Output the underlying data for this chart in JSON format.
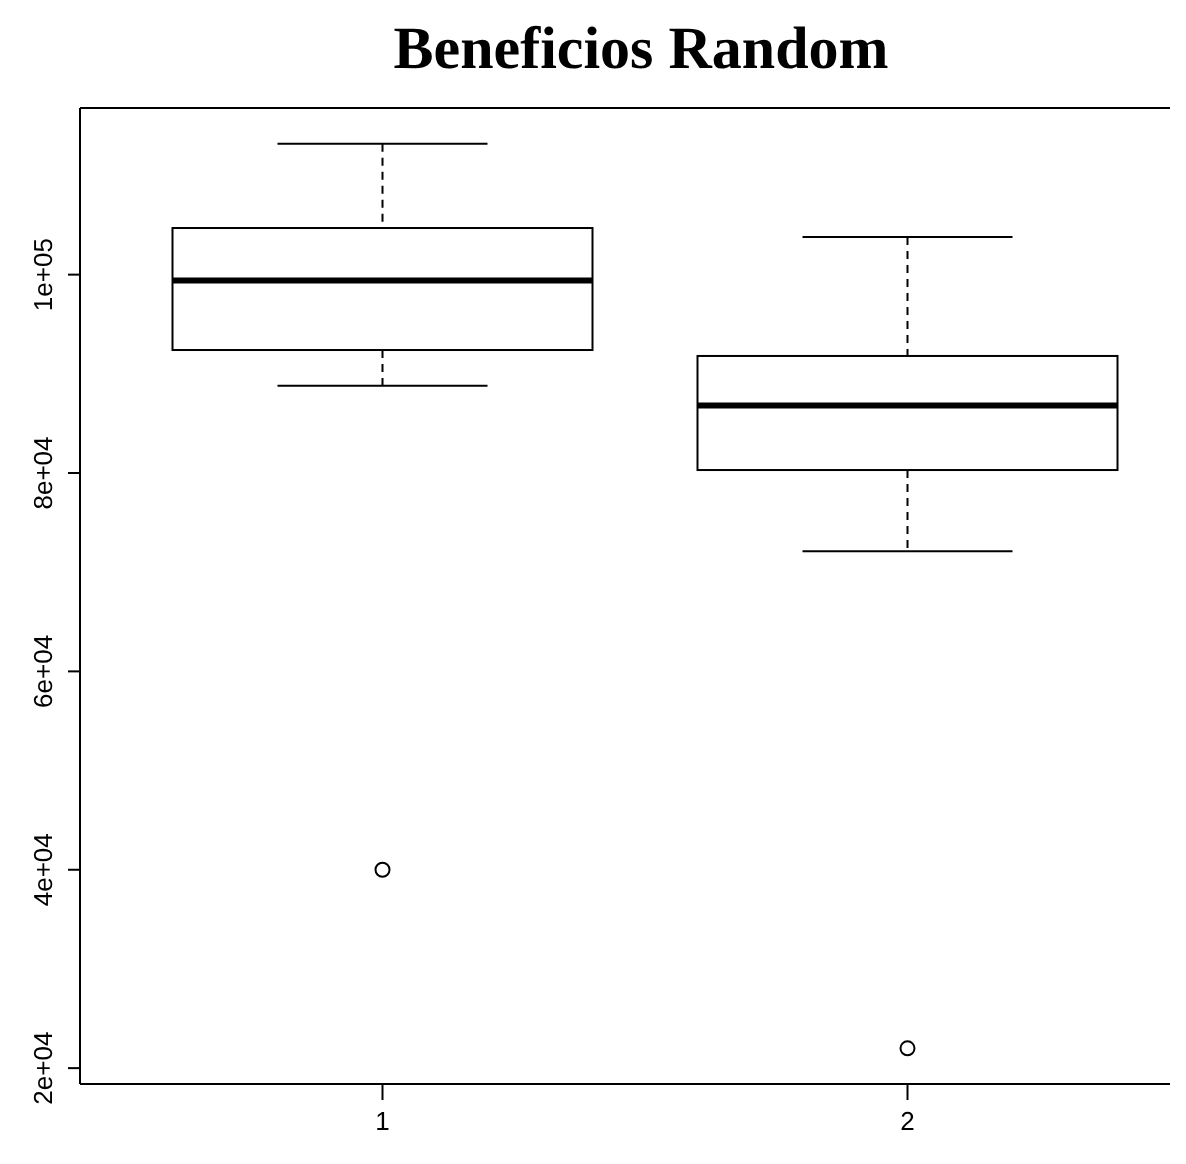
{
  "chart_data": {
    "type": "box",
    "title": "Beneficios Random",
    "categories": [
      "1",
      "2"
    ],
    "boxes": [
      {
        "low": 88800,
        "q1": 92400,
        "median": 99400,
        "q3": 104700,
        "high": 113200,
        "outliers": [
          40000
        ]
      },
      {
        "low": 72100,
        "q1": 80300,
        "median": 86800,
        "q3": 91800,
        "high": 103800,
        "outliers": [
          22000
        ]
      }
    ],
    "ylim": [
      18400,
      116800
    ],
    "yticks": [
      {
        "value": 20000,
        "label": "2e+04"
      },
      {
        "value": 40000,
        "label": "4e+04"
      },
      {
        "value": 60000,
        "label": "6e+04"
      },
      {
        "value": 80000,
        "label": "8e+04"
      },
      {
        "value": 100000,
        "label": "1e+05"
      }
    ],
    "grid": false,
    "legend": false
  }
}
